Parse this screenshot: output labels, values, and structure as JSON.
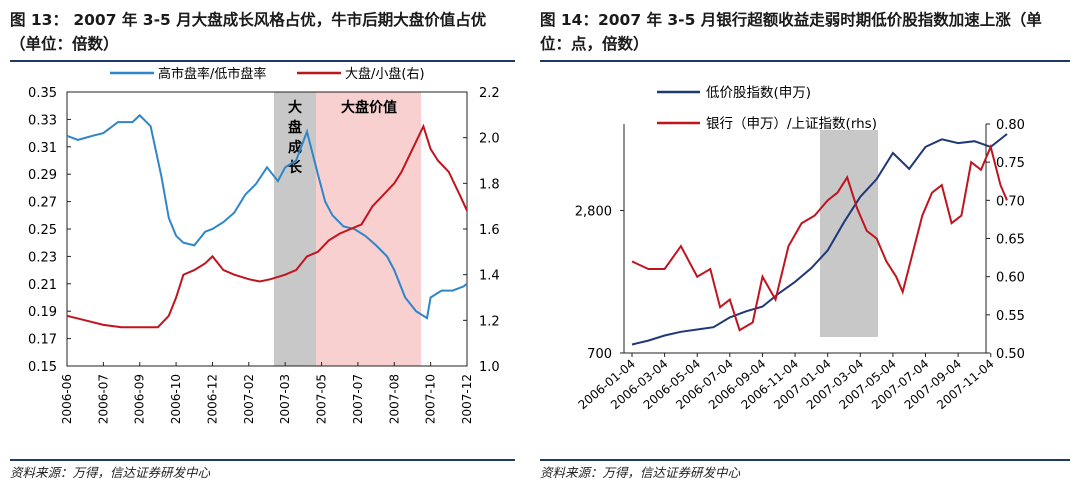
{
  "charts": [
    {
      "title": "图 13： 2007 年 3-5 月大盘成长风格占优，牛市后期大盘价值占优（单位：倍数）",
      "source": "资料来源：万得，信达证券研发中心",
      "chart_data": {
        "type": "line",
        "x_ticks": [
          "2006-06",
          "2006-07",
          "2006-09",
          "2006-10",
          "2006-12",
          "2007-02",
          "2007-03",
          "2007-05",
          "2007-07",
          "2007-08",
          "2007-10",
          "2007-12"
        ],
        "y_left": {
          "ticks": [
            "0.15",
            "0.17",
            "0.19",
            "0.21",
            "0.23",
            "0.25",
            "0.27",
            "0.29",
            "0.31",
            "0.33",
            "0.35"
          ],
          "lim": [
            0.15,
            0.35
          ]
        },
        "y_right": {
          "ticks": [
            "1.0",
            "1.2",
            "1.4",
            "1.6",
            "1.8",
            "2.0",
            "2.2"
          ],
          "lim": [
            1.0,
            2.2
          ]
        },
        "shaded": [
          {
            "label": "大盘成长",
            "color": "#c8c8c8",
            "from": "2007-03",
            "to": "2007-05"
          },
          {
            "label": "大盘价值",
            "color": "#f9d0d0",
            "from": "2007-05",
            "to": "2007-10"
          }
        ],
        "series": [
          {
            "name": "高市盘率/低市盘率",
            "color": "#2e86c9",
            "axis": "left",
            "x": [
              0,
              0.3,
              0.7,
              1,
              1.4,
              1.8,
              2,
              2.3,
              2.6,
              2.8,
              3,
              3.2,
              3.5,
              3.8,
              4,
              4.3,
              4.6,
              4.9,
              5.2,
              5.5,
              5.8,
              6,
              6.3,
              6.6,
              6.9,
              7.1,
              7.3,
              7.6,
              7.9,
              8.2,
              8.5,
              8.8,
              9,
              9.3,
              9.6,
              9.9,
              10,
              10.3,
              10.6,
              10.9,
              11
            ],
            "values": [
              0.318,
              0.315,
              0.318,
              0.32,
              0.328,
              0.328,
              0.333,
              0.325,
              0.288,
              0.258,
              0.245,
              0.24,
              0.238,
              0.248,
              0.25,
              0.255,
              0.262,
              0.275,
              0.283,
              0.295,
              0.285,
              0.295,
              0.3,
              0.321,
              0.29,
              0.27,
              0.26,
              0.252,
              0.25,
              0.245,
              0.238,
              0.23,
              0.22,
              0.2,
              0.19,
              0.185,
              0.2,
              0.205,
              0.205,
              0.208,
              0.21
            ]
          },
          {
            "name": "大盘/小盘(右)",
            "color": "#c0141e",
            "axis": "right",
            "x": [
              0,
              0.5,
              1,
              1.5,
              2,
              2.5,
              2.8,
              3,
              3.2,
              3.5,
              3.8,
              4,
              4.3,
              4.6,
              5,
              5.3,
              5.6,
              6,
              6.3,
              6.6,
              6.9,
              7.2,
              7.5,
              7.8,
              8.1,
              8.4,
              8.7,
              9,
              9.2,
              9.5,
              9.8,
              10,
              10.2,
              10.5,
              10.8,
              11
            ],
            "values": [
              1.22,
              1.2,
              1.18,
              1.17,
              1.17,
              1.17,
              1.22,
              1.3,
              1.4,
              1.42,
              1.45,
              1.48,
              1.42,
              1.4,
              1.38,
              1.37,
              1.38,
              1.4,
              1.42,
              1.48,
              1.5,
              1.55,
              1.58,
              1.6,
              1.62,
              1.7,
              1.75,
              1.8,
              1.85,
              1.95,
              2.05,
              1.95,
              1.9,
              1.85,
              1.75,
              1.68
            ]
          }
        ]
      }
    },
    {
      "title": "图 14：2007 年 3-5 月银行超额收益走弱时期低价股指数加速上涨（单位：点，倍数）",
      "source": "资料来源：万得，信达证券研发中心",
      "chart_data": {
        "type": "line",
        "x_ticks": [
          "2006-01-04",
          "2006-03-04",
          "2006-05-04",
          "2006-07-04",
          "2006-09-04",
          "2006-11-04",
          "2007-01-04",
          "2007-03-04",
          "2007-05-04",
          "2007-07-04",
          "2007-09-04",
          "2007-11-04"
        ],
        "y_left": {
          "ticks": [
            "700",
            "2,800"
          ],
          "scale": "log",
          "lim": [
            700,
            6500
          ]
        },
        "y_right": {
          "ticks": [
            "0.50",
            "0.55",
            "0.60",
            "0.65",
            "0.70",
            "0.75",
            "0.80"
          ],
          "lim": [
            0.5,
            0.8
          ]
        },
        "shaded": [
          {
            "label": "",
            "color": "#c8c8c8",
            "from": "2007-03-04",
            "to": "2007-05-04"
          }
        ],
        "series": [
          {
            "name": "低价股指数(申万)",
            "color": "#1f3878",
            "axis": "left",
            "x": [
              0,
              0.5,
              1,
              1.5,
              2,
              2.5,
              3,
              3.5,
              4,
              4.5,
              5,
              5.5,
              6,
              6.5,
              7,
              7.5,
              8,
              8.5,
              9,
              9.5,
              10,
              10.5,
              11,
              11.5
            ],
            "values": [
              760,
              790,
              830,
              860,
              880,
              900,
              990,
              1050,
              1100,
              1250,
              1400,
              1600,
              1900,
              2500,
              3200,
              3800,
              4900,
              4200,
              5200,
              5600,
              5400,
              5500,
              5200,
              5900
            ]
          },
          {
            "name": "银行（申万）/上证指数(rhs)",
            "color": "#c0141e",
            "axis": "right",
            "x": [
              0,
              0.5,
              1,
              1.5,
              2,
              2.4,
              2.7,
              3,
              3.3,
              3.7,
              4,
              4.4,
              4.8,
              5.2,
              5.6,
              6,
              6.3,
              6.6,
              6.9,
              7.2,
              7.5,
              7.8,
              8.1,
              8.3,
              8.6,
              8.9,
              9.2,
              9.5,
              9.8,
              10.1,
              10.4,
              10.7,
              11,
              11.3,
              11.5
            ],
            "values": [
              0.62,
              0.61,
              0.61,
              0.64,
              0.6,
              0.61,
              0.56,
              0.57,
              0.53,
              0.54,
              0.6,
              0.57,
              0.64,
              0.67,
              0.68,
              0.7,
              0.71,
              0.73,
              0.69,
              0.66,
              0.65,
              0.62,
              0.6,
              0.58,
              0.63,
              0.68,
              0.71,
              0.72,
              0.67,
              0.68,
              0.75,
              0.74,
              0.77,
              0.72,
              0.7
            ]
          }
        ]
      }
    }
  ]
}
